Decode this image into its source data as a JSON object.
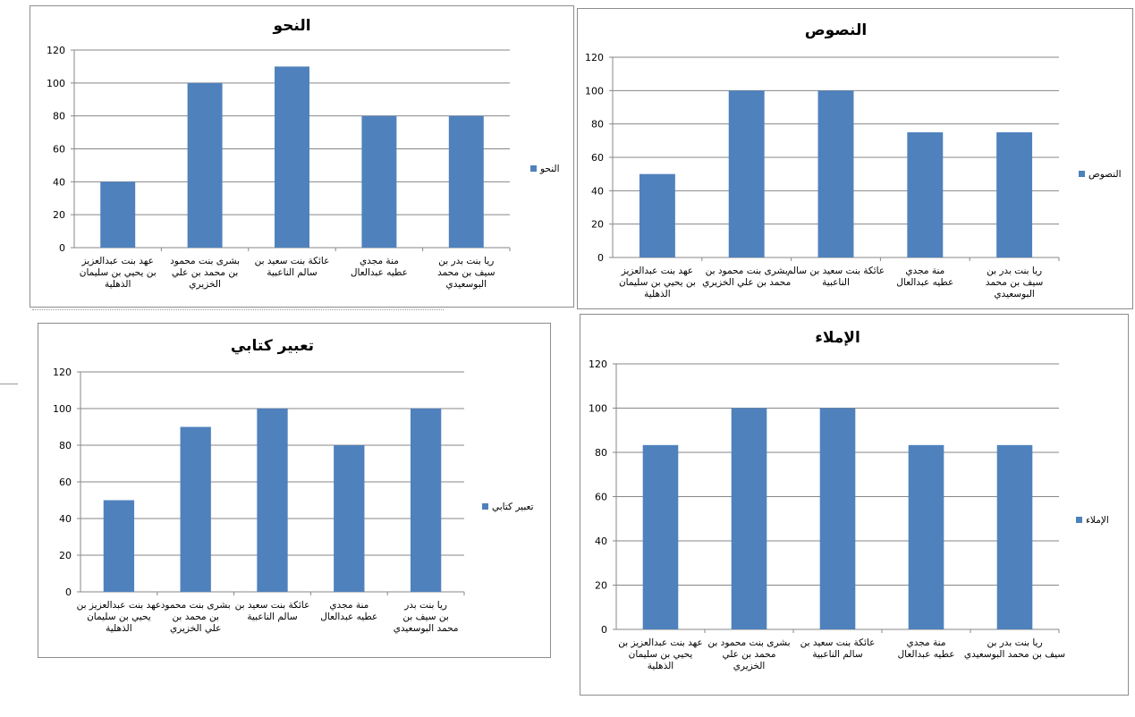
{
  "colors": {
    "bar": "#4f81bd",
    "grid": "#878787",
    "axis": "#878787",
    "text": "#000000"
  },
  "chart_data": [
    {
      "type": "bar",
      "title": "النحو",
      "legend": "النحو",
      "legend_position": "right",
      "grid": true,
      "ylim": [
        0,
        120
      ],
      "yticks": [
        0,
        20,
        40,
        60,
        80,
        100,
        120
      ],
      "categories": [
        "عهد بنت عبدالعزيز بن يحيي بن سليمان الذهلية",
        "بشرى بنت محمود بن محمد بن علي الخزيري",
        "عائكة بنت سعيد بن سالم الناعبية",
        "منة مجدي عطيه عبدالعال",
        "ريا بنت بدر بن سيف بن محمد البوسعيدي"
      ],
      "values": [
        40,
        100,
        110,
        80,
        80
      ]
    },
    {
      "type": "bar",
      "title": "النصوص",
      "legend": "النصوص",
      "legend_position": "right",
      "grid": true,
      "ylim": [
        0,
        120
      ],
      "yticks": [
        0,
        20,
        40,
        60,
        80,
        100,
        120
      ],
      "categories": [
        "عهد بنت عبدالعزيز بن يحيي بن سليمان الذهلية",
        "بشرى بنت محمود بن محمد بن علي الخزيري",
        "عائكة بنت سعيد بن سالم الناعبية",
        "منة مجدي عطيه عبدالعال",
        "ريا بنت بدر بن سيف بن محمد البوسعيدي"
      ],
      "values": [
        50,
        100,
        100,
        75,
        75
      ]
    },
    {
      "type": "bar",
      "title": "تعبير كتابي",
      "legend": "تعبير كتابي",
      "legend_position": "right",
      "grid": true,
      "ylim": [
        0,
        120
      ],
      "yticks": [
        0,
        20,
        40,
        60,
        80,
        100,
        120
      ],
      "categories": [
        "عهد بنت عبدالعزيز بن يحيي بن سليمان الذهلية",
        "بشرى بنت محمود بن محمد بن علي الخزيري",
        "عائكة بنت سعيد بن سالم الناعبية",
        "منة مجدي عطيه عبدالعال",
        "ريا بنت بدر بن سيف بن محمد البوسعيدي"
      ],
      "values": [
        50,
        90,
        100,
        80,
        100
      ]
    },
    {
      "type": "bar",
      "title": "الإملاء",
      "legend": "الإملاء",
      "legend_position": "right",
      "grid": true,
      "ylim": [
        0,
        120
      ],
      "yticks": [
        0,
        20,
        40,
        60,
        80,
        100,
        120
      ],
      "categories": [
        "عهد بنت عبدالعزيز بن يحيي بن سليمان الذهلية",
        "بشرى بنت محمود بن محمد بن علي الخزيري",
        "عائكة بنت سعيد بن سالم الناعبية",
        "منة مجدي عطيه عبدالعال",
        "ريا بنت بدر بن سيف بن محمد البوسعيدي"
      ],
      "values": [
        83.3,
        100,
        100,
        83.3,
        83.3
      ]
    }
  ]
}
